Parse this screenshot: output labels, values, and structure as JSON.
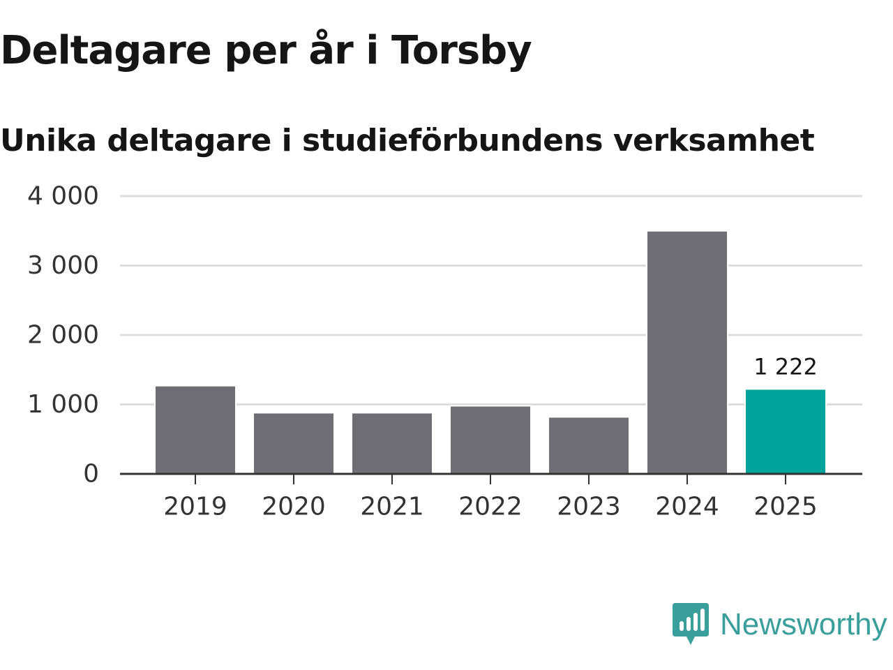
{
  "title": "Deltagare per år i Torsby",
  "subtitle": "Unika deltagare i studieförbundens verksamhet",
  "brand": {
    "name": "Newsworthy",
    "icon": "newsworthy-logo-icon",
    "color": "#3a9e9a"
  },
  "colors": {
    "bar": "#6f6e74",
    "highlight": "#00a39a",
    "grid": "#dddddd",
    "axis": "#333333",
    "text": "#333333"
  },
  "chart_data": {
    "type": "bar",
    "title": "Deltagare per år i Torsby",
    "subtitle": "Unika deltagare i studieförbundens verksamhet",
    "xlabel": "",
    "ylabel": "",
    "categories": [
      "2019",
      "2020",
      "2021",
      "2022",
      "2023",
      "2024",
      "2025"
    ],
    "values": [
      1270,
      880,
      880,
      980,
      820,
      3500,
      1222
    ],
    "highlight_index": 6,
    "data_labels": [
      {
        "index": 6,
        "text": "1 222"
      }
    ],
    "ylim": [
      0,
      4000
    ],
    "yticks": [
      0,
      1000,
      2000,
      3000,
      4000
    ],
    "ytick_labels": [
      "0",
      "1 000",
      "2 000",
      "3 000",
      "4 000"
    ],
    "grid": true,
    "legend": "none"
  }
}
